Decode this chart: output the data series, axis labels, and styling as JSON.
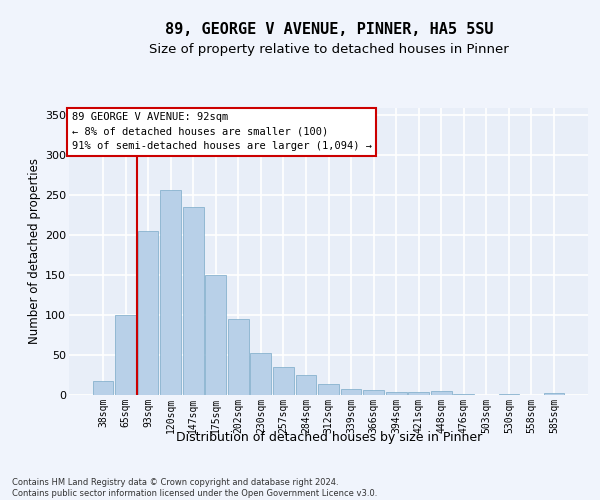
{
  "title1": "89, GEORGE V AVENUE, PINNER, HA5 5SU",
  "title2": "Size of property relative to detached houses in Pinner",
  "xlabel": "Distribution of detached houses by size in Pinner",
  "ylabel": "Number of detached properties",
  "categories": [
    "38sqm",
    "65sqm",
    "93sqm",
    "120sqm",
    "147sqm",
    "175sqm",
    "202sqm",
    "230sqm",
    "257sqm",
    "284sqm",
    "312sqm",
    "339sqm",
    "366sqm",
    "394sqm",
    "421sqm",
    "448sqm",
    "476sqm",
    "503sqm",
    "530sqm",
    "558sqm",
    "585sqm"
  ],
  "values": [
    18,
    100,
    205,
    257,
    235,
    150,
    95,
    52,
    35,
    25,
    14,
    8,
    6,
    4,
    4,
    5,
    1,
    0,
    1,
    0,
    3
  ],
  "bar_color": "#b8d0e8",
  "bar_edge_color": "#7aaac8",
  "vline_x": 2,
  "vline_color": "#cc0000",
  "annotation_text": "89 GEORGE V AVENUE: 92sqm\n← 8% of detached houses are smaller (100)\n91% of semi-detached houses are larger (1,094) →",
  "annotation_box_color": "#ffffff",
  "annotation_box_edge": "#cc0000",
  "footnote": "Contains HM Land Registry data © Crown copyright and database right 2024.\nContains public sector information licensed under the Open Government Licence v3.0.",
  "ylim": [
    0,
    360
  ],
  "yticks": [
    0,
    50,
    100,
    150,
    200,
    250,
    300,
    350
  ],
  "bg_color": "#e8eef8",
  "grid_color": "#ffffff",
  "fig_bg_color": "#f0f4fc",
  "title1_fontsize": 11,
  "title2_fontsize": 9.5,
  "ylabel_fontsize": 8.5,
  "xlabel_fontsize": 9,
  "tick_fontsize": 7,
  "annot_fontsize": 7.5,
  "footnote_fontsize": 6.0
}
